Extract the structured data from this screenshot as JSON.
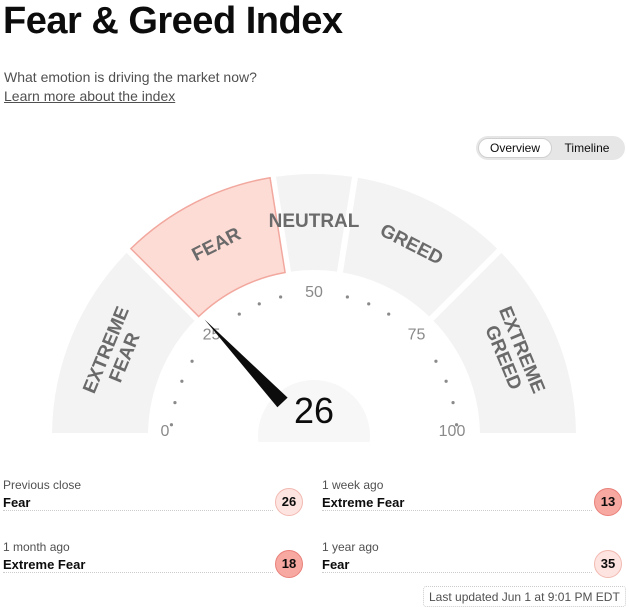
{
  "header": {
    "title": "Fear & Greed Index",
    "subtitle": "What emotion is driving the market now?",
    "learn_link": "Learn more about the index"
  },
  "view_toggle": {
    "tabs": [
      {
        "label": "Overview",
        "active": true
      },
      {
        "label": "Timeline",
        "active": false
      }
    ]
  },
  "gauge": {
    "value": 26,
    "value_text": "26",
    "min_label": "0",
    "max_label": "100",
    "tick_labels": [
      "25",
      "50",
      "75"
    ],
    "segments": [
      {
        "lines": [
          "EXTREME",
          "FEAR"
        ],
        "from": 0,
        "to": 25
      },
      {
        "lines": [
          "FEAR"
        ],
        "from": 25,
        "to": 45
      },
      {
        "lines": [
          "NEUTRAL"
        ],
        "from": 45,
        "to": 55
      },
      {
        "lines": [
          "GREED"
        ],
        "from": 55,
        "to": 75
      },
      {
        "lines": [
          "EXTREME",
          "GREED"
        ],
        "from": 75,
        "to": 100
      }
    ],
    "active_segment": "FEAR",
    "colors": {
      "segment": "#f3f3f3",
      "active_fill": "#fddcd6",
      "active_stroke": "#f2a89e",
      "label": "#6a6a6a",
      "needle": "#0c0c0c"
    }
  },
  "history": [
    {
      "label": "Previous close",
      "value": "Fear",
      "score": "26",
      "level": "fear"
    },
    {
      "label": "1 week ago",
      "value": "Extreme Fear",
      "score": "13",
      "level": "extreme-fear"
    },
    {
      "label": "1 month ago",
      "value": "Extreme Fear",
      "score": "18",
      "level": "extreme-fear"
    },
    {
      "label": "1 year ago",
      "value": "Fear",
      "score": "35",
      "level": "fear"
    }
  ],
  "last_updated": "Last updated Jun 1 at 9:01 PM EDT"
}
